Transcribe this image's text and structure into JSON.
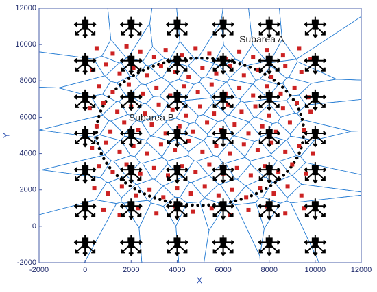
{
  "chart_data": {
    "type": "scatter",
    "xlabel": "X",
    "ylabel": "Y",
    "xlim": [
      -2000,
      12000
    ],
    "ylim": [
      -2000,
      12000
    ],
    "xticks": [
      -2000,
      0,
      2000,
      4000,
      6000,
      8000,
      10000,
      12000
    ],
    "yticks": [
      -2000,
      0,
      2000,
      4000,
      6000,
      8000,
      10000,
      12000
    ],
    "voronoi": true,
    "voronoi_color": "#2a7fd4",
    "annotations": [
      {
        "text": "Subarea A",
        "x": 6700,
        "y": 10250
      },
      {
        "text": "Subarea B",
        "x": 1900,
        "y": 5950
      }
    ],
    "boundary": {
      "center": [
        5000,
        5200
      ],
      "radii": [
        4500,
        4050
      ],
      "color": "#000000"
    },
    "series": [
      {
        "marker": "square",
        "color": "#cc2222",
        "x": [
          500,
          1200,
          1800,
          2400,
          3000,
          3500,
          4200,
          4800,
          5400,
          6100,
          6700,
          7300,
          7900,
          8600,
          9300,
          9800,
          300,
          900,
          1500,
          2100,
          2700,
          3300,
          3900,
          4500,
          5100,
          5700,
          6300,
          6900,
          7500,
          8100,
          8700,
          9400,
          600,
          1200,
          1900,
          2500,
          3100,
          3700,
          4300,
          4900,
          5500,
          6100,
          6700,
          7300,
          7900,
          8500,
          9100,
          9700,
          200,
          800,
          1400,
          2000,
          2600,
          3200,
          3800,
          4400,
          5000,
          5600,
          6200,
          6800,
          7400,
          8000,
          8600,
          9200,
          9800,
          500,
          1100,
          1700,
          2300,
          2900,
          3500,
          4100,
          4700,
          5300,
          5900,
          6500,
          7100,
          7700,
          8300,
          8900,
          9500,
          300,
          900,
          1500,
          2100,
          2700,
          3300,
          3900,
          4500,
          5100,
          5700,
          6300,
          6900,
          7500,
          8100,
          8700,
          9300,
          9900,
          600,
          1200,
          1800,
          2400,
          3000,
          3600,
          4200,
          4800,
          5400,
          6000,
          6600,
          7200,
          7800,
          8400,
          9000,
          9600,
          400,
          1000,
          1600,
          2200,
          2800,
          3400,
          4000,
          4600,
          5200,
          5800,
          6400,
          7000,
          7600,
          8200,
          8800,
          9400,
          800,
          1500,
          2300,
          3100,
          3900,
          4700,
          5500,
          6300,
          7100,
          7900,
          8700,
          9500
        ],
        "values": [
          9800,
          9500,
          9900,
          9600,
          9300,
          9700,
          9400,
          9800,
          9500,
          9200,
          9600,
          9300,
          9700,
          9400,
          9800,
          9200,
          8600,
          8900,
          8400,
          8700,
          8300,
          8800,
          8500,
          8200,
          8700,
          8400,
          8800,
          8300,
          8600,
          8200,
          8800,
          8500,
          7700,
          7400,
          7800,
          7300,
          7600,
          7200,
          7700,
          7400,
          7800,
          7300,
          7600,
          7200,
          7700,
          7300,
          7600,
          7100,
          6500,
          6800,
          6300,
          6600,
          6200,
          6700,
          6400,
          6100,
          6600,
          6200,
          6700,
          6300,
          6600,
          6100,
          6500,
          6800,
          6300,
          5500,
          5200,
          5700,
          5300,
          5600,
          5100,
          5500,
          5200,
          5700,
          5300,
          5600,
          5100,
          5500,
          5200,
          5700,
          5300,
          4300,
          4600,
          4100,
          4400,
          4000,
          4500,
          4200,
          4700,
          4100,
          4400,
          4000,
          4500,
          4200,
          4600,
          4100,
          4400,
          4000,
          3300,
          3000,
          3400,
          2900,
          3200,
          2800,
          3300,
          3000,
          3400,
          2900,
          3200,
          2800,
          3300,
          3000,
          3400,
          2900,
          2100,
          1800,
          2200,
          1700,
          2000,
          1600,
          2100,
          1800,
          2200,
          1700,
          2000,
          1600,
          2100,
          1800,
          2200,
          1700,
          900,
          600,
          1000,
          700,
          1100,
          800,
          1000,
          600,
          900,
          1100,
          700,
          1000
        ]
      },
      {
        "marker": "drone",
        "color": "#000000",
        "x": [
          0,
          2000,
          4000,
          6000,
          8000,
          10000,
          0,
          2000,
          4000,
          6000,
          8000,
          10000,
          0,
          2000,
          4000,
          6000,
          8000,
          10000,
          0,
          2000,
          4000,
          6000,
          8000,
          10000,
          0,
          2000,
          4000,
          6000,
          8000,
          10000,
          0,
          2000,
          4000,
          6000,
          8000,
          10000,
          0,
          2000,
          4000,
          6000,
          8000,
          10000
        ],
        "values": [
          11000,
          11000,
          11000,
          11000,
          11000,
          11000,
          9000,
          9000,
          9000,
          9000,
          9000,
          9000,
          7000,
          7000,
          7000,
          7000,
          7000,
          7000,
          5000,
          5000,
          5000,
          5000,
          5000,
          5000,
          3000,
          3000,
          3000,
          3000,
          3000,
          3000,
          1000,
          1000,
          1000,
          1000,
          1000,
          1000,
          -1000,
          -1000,
          -1000,
          -1000,
          -1000,
          -1000
        ]
      }
    ]
  }
}
